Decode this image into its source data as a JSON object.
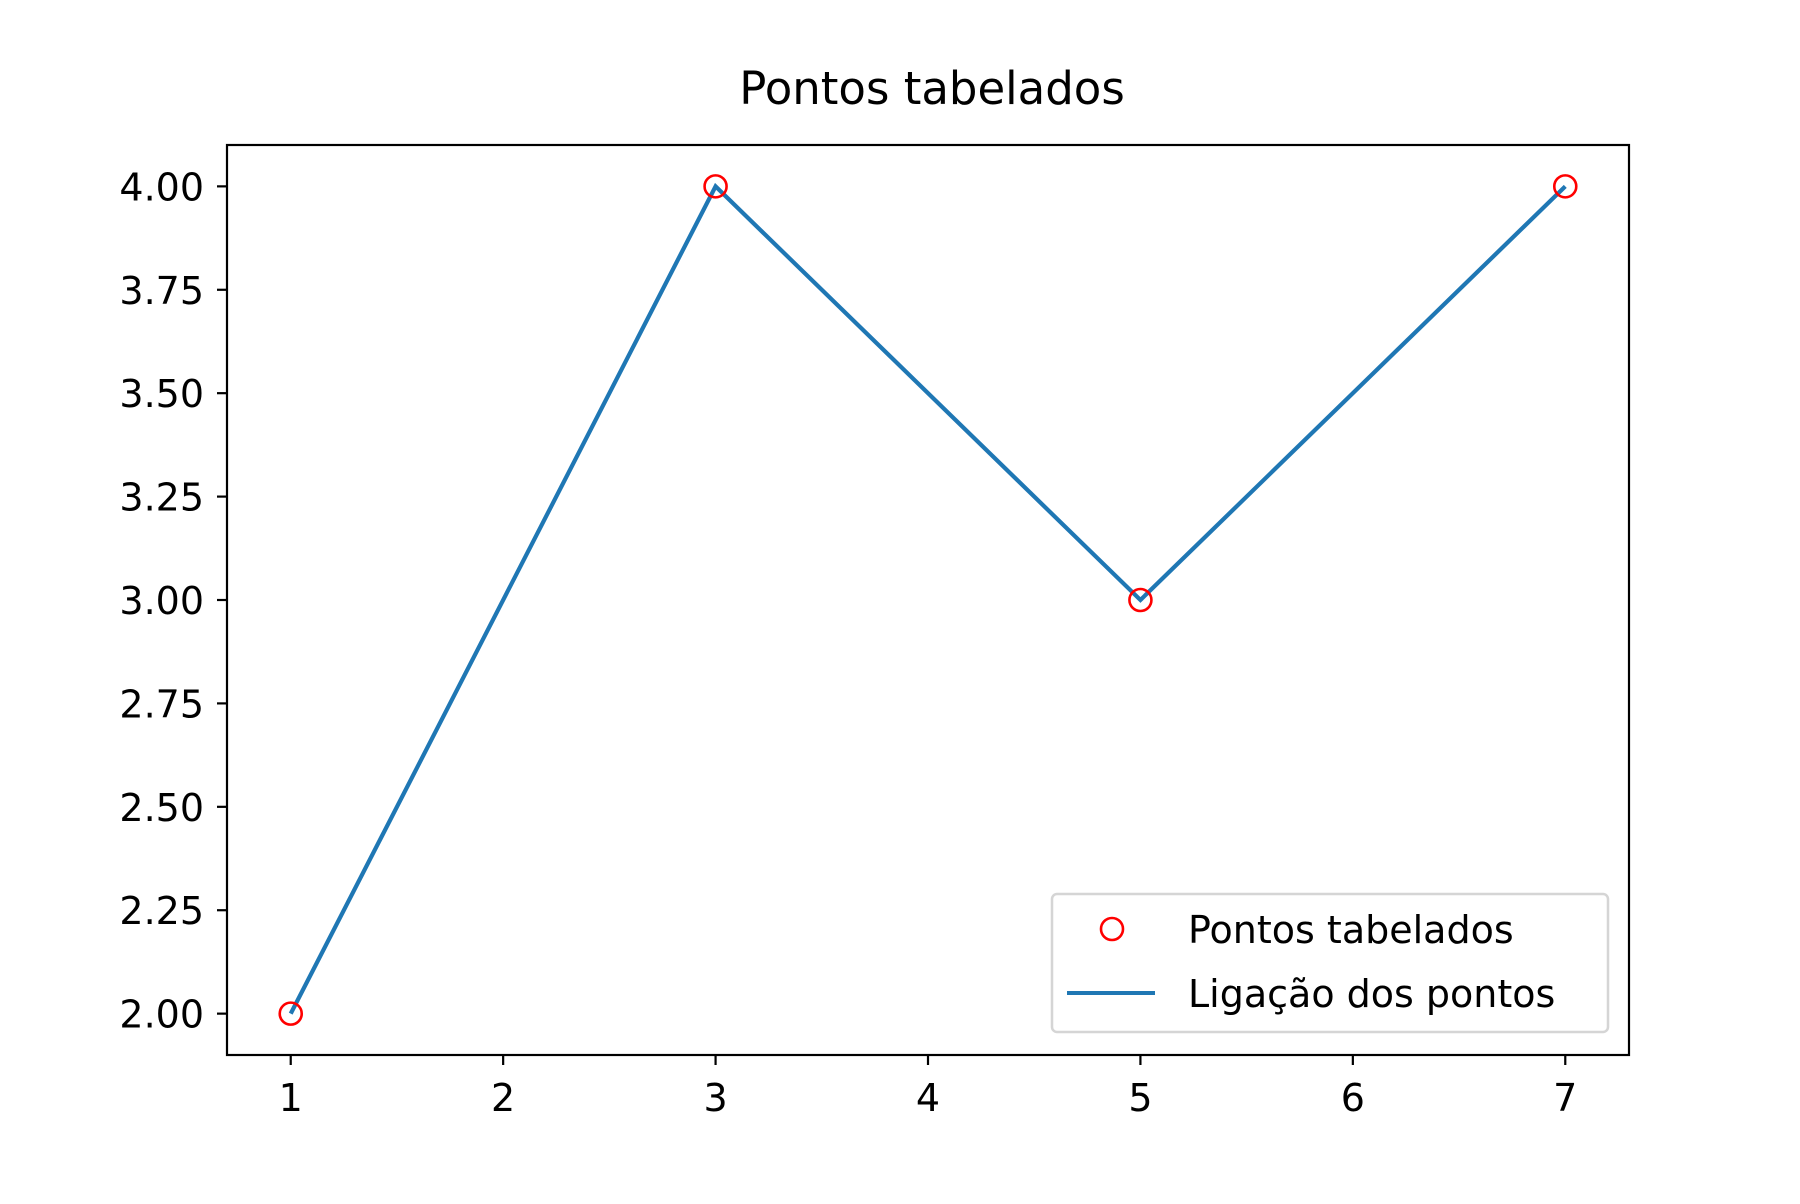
{
  "chart_data": {
    "type": "line",
    "title": "Pontos tabelados",
    "xlabel": "",
    "ylabel": "",
    "xlim": [
      0.7,
      7.3
    ],
    "ylim": [
      1.9,
      4.1
    ],
    "x_ticks": [
      1,
      2,
      3,
      4,
      5,
      6,
      7
    ],
    "y_ticks": [
      2.0,
      2.25,
      2.5,
      2.75,
      3.0,
      3.25,
      3.5,
      3.75,
      4.0
    ],
    "x_tick_labels": [
      "1",
      "2",
      "3",
      "4",
      "5",
      "6",
      "7"
    ],
    "y_tick_labels": [
      "2.00",
      "2.25",
      "2.50",
      "2.75",
      "3.00",
      "3.25",
      "3.50",
      "3.75",
      "4.00"
    ],
    "grid": false,
    "legend_position": "lower-right",
    "series": [
      {
        "name": "Pontos tabelados",
        "style": "markers",
        "marker": "open-circle",
        "color": "#ff0000",
        "x": [
          1,
          3,
          5,
          7
        ],
        "y": [
          2,
          4,
          3,
          4
        ]
      },
      {
        "name": "Ligação dos pontos",
        "style": "line",
        "color": "#1f77b4",
        "x": [
          1,
          3,
          5,
          7
        ],
        "y": [
          2,
          4,
          3,
          4
        ]
      }
    ]
  }
}
